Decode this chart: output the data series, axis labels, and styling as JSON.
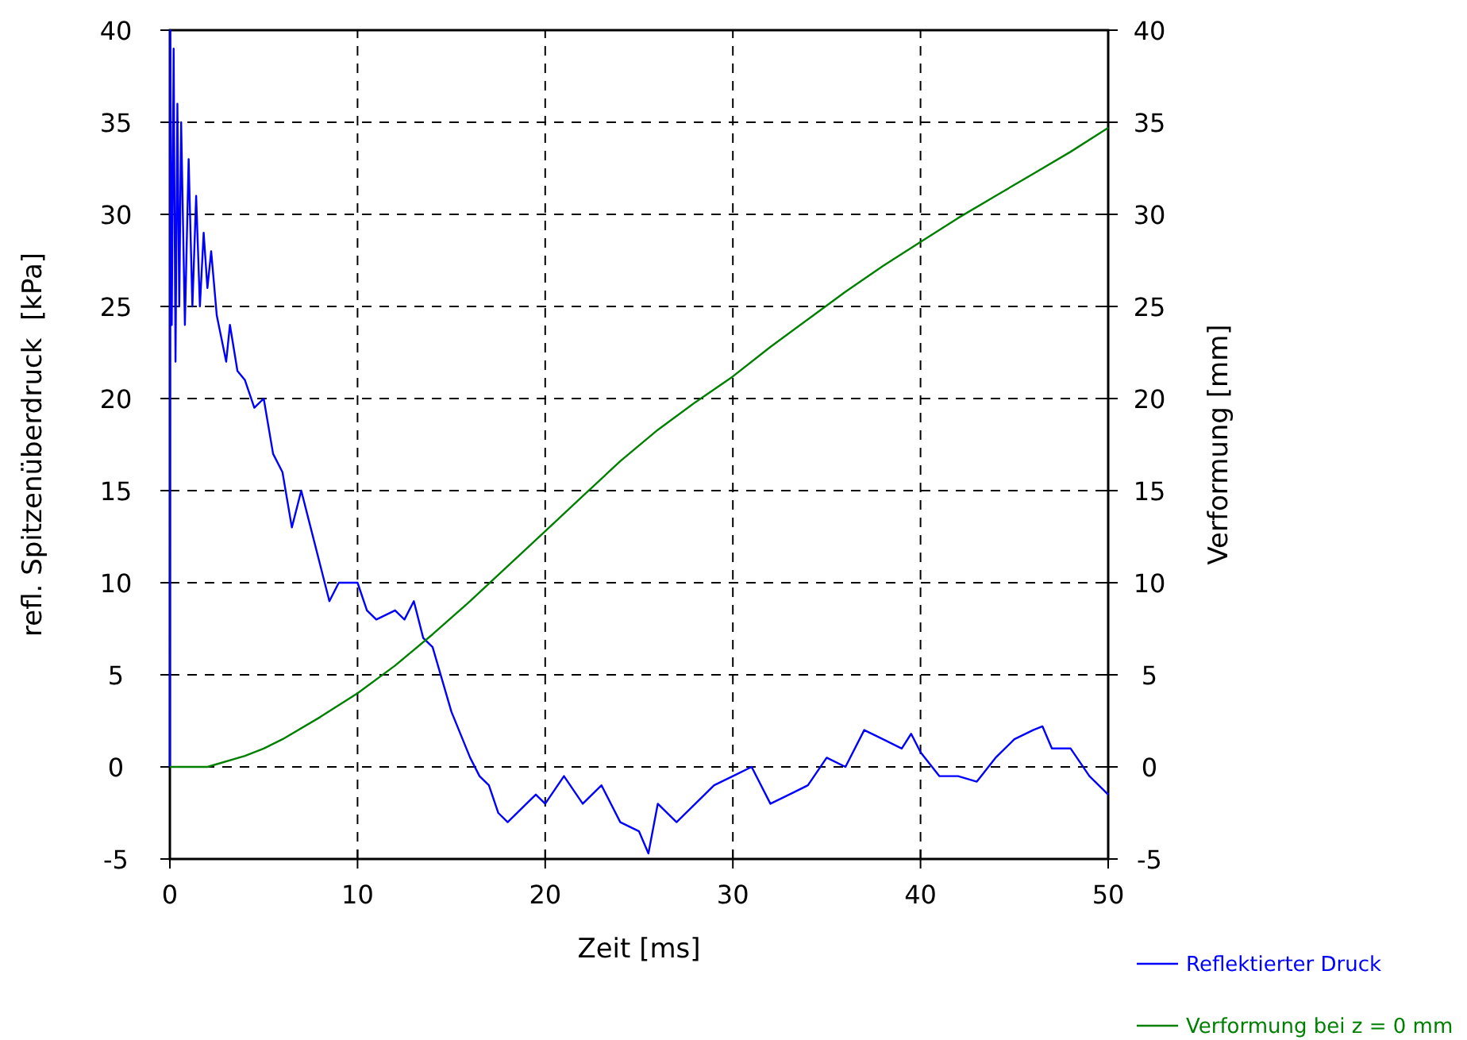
{
  "chart_data": {
    "type": "line",
    "xlabel": "Zeit [ms]",
    "ylabel": "refl. Spitzenüberdruck  [kPa]",
    "y2label": "Verformung [mm]",
    "xlim": [
      0,
      50
    ],
    "xticks": [
      0,
      10,
      20,
      30,
      40,
      50
    ],
    "ylim": [
      -5,
      40
    ],
    "yticks": [
      -5,
      0,
      5,
      10,
      15,
      20,
      25,
      30,
      35,
      40
    ],
    "y2lim": [
      -5,
      40
    ],
    "y2ticks": [
      -5,
      0,
      5,
      10,
      15,
      20,
      25,
      30,
      35,
      40
    ],
    "grid": true,
    "legend": "bottom right",
    "line_style": "solid",
    "marker": "none",
    "series": [
      {
        "name": "Reflektierter Druck",
        "color": "#0000ff",
        "x": [
          0,
          0.02,
          0.1,
          0.2,
          0.3,
          0.4,
          0.5,
          0.6,
          0.8,
          1.0,
          1.2,
          1.4,
          1.6,
          1.8,
          2.0,
          2.2,
          2.5,
          3.0,
          3.2,
          3.6,
          4.0,
          4.5,
          5,
          5.5,
          6,
          6.5,
          7,
          7.5,
          8,
          8.5,
          9,
          10,
          10.5,
          11,
          12,
          12.5,
          13,
          13.5,
          14,
          15,
          16,
          16.5,
          17,
          17.5,
          18,
          19,
          19.5,
          20,
          21,
          22,
          23,
          24,
          25,
          25.5,
          26,
          27,
          28,
          29,
          30,
          31,
          32,
          33,
          34,
          35,
          36,
          37,
          38,
          39,
          39.5,
          40,
          41,
          42,
          43,
          44,
          45,
          46,
          46.5,
          47,
          48,
          49,
          50
        ],
        "values": [
          0,
          40,
          24,
          39,
          22,
          36,
          25,
          35,
          24,
          33,
          25,
          31,
          25,
          29,
          26,
          28,
          24.5,
          22,
          24,
          21.5,
          21,
          19.5,
          20,
          17,
          16,
          13,
          15,
          13,
          11,
          9,
          10,
          10,
          8.5,
          8,
          8.5,
          8,
          9,
          7,
          6.5,
          3,
          0.5,
          -0.5,
          -1,
          -2.5,
          -3,
          -2,
          -1.5,
          -2,
          -0.5,
          -2,
          -1,
          -3,
          -3.5,
          -4.7,
          -2,
          -3,
          -2,
          -1,
          -0.5,
          0,
          -2,
          -1.5,
          -1,
          0.5,
          0,
          2,
          1.5,
          1,
          1.8,
          0.8,
          -0.5,
          -0.5,
          -0.8,
          0.5,
          1.5,
          2,
          2.2,
          1,
          1,
          -0.5,
          -1.5
        ]
      },
      {
        "name": "Verformung bei z = 0 mm",
        "color": "#008000",
        "axis": "y2",
        "x": [
          0,
          2,
          4,
          5,
          6,
          8,
          10,
          12,
          14,
          16,
          18,
          20,
          22,
          24,
          26,
          28,
          30,
          32,
          34,
          36,
          38,
          40,
          42,
          44,
          46,
          48,
          50
        ],
        "values": [
          0,
          0,
          0.6,
          1.0,
          1.5,
          2.7,
          4.0,
          5.5,
          7.2,
          9.0,
          10.9,
          12.8,
          14.7,
          16.6,
          18.3,
          19.8,
          21.2,
          22.8,
          24.3,
          25.8,
          27.2,
          28.5,
          29.8,
          31.0,
          32.2,
          33.4,
          34.7
        ]
      }
    ]
  }
}
